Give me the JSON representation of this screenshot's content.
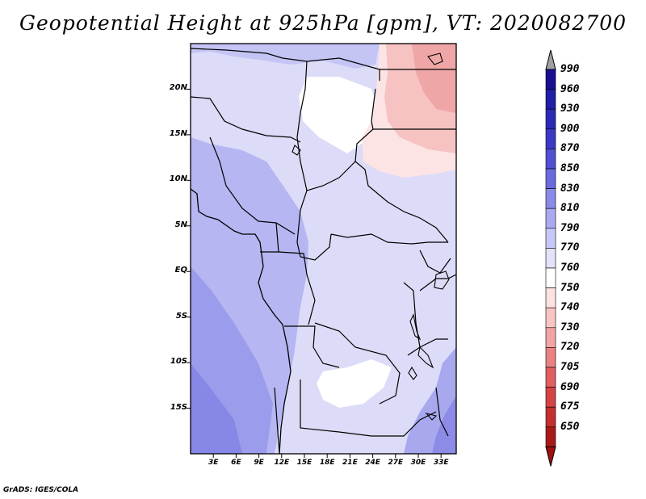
{
  "title": "Geopotential Height at 925hPa [gpm], VT: 2020082700",
  "credit": "GrADS: IGES/COLA",
  "map": {
    "lon_range": [
      0,
      35
    ],
    "lat_range": [
      -20,
      25
    ],
    "lat_ticks": [
      {
        "value": 20,
        "label": "20N"
      },
      {
        "value": 15,
        "label": "15N"
      },
      {
        "value": 10,
        "label": "10N"
      },
      {
        "value": 5,
        "label": "5N"
      },
      {
        "value": 0,
        "label": "EQ"
      },
      {
        "value": -5,
        "label": "5S"
      },
      {
        "value": -10,
        "label": "10S"
      },
      {
        "value": -15,
        "label": "15S"
      }
    ],
    "lon_ticks": [
      {
        "value": 3,
        "label": "3E"
      },
      {
        "value": 6,
        "label": "6E"
      },
      {
        "value": 9,
        "label": "9E"
      },
      {
        "value": 12,
        "label": "12E"
      },
      {
        "value": 15,
        "label": "15E"
      },
      {
        "value": 18,
        "label": "18E"
      },
      {
        "value": 21,
        "label": "21E"
      },
      {
        "value": 24,
        "label": "24E"
      },
      {
        "value": 27,
        "label": "27E"
      },
      {
        "value": 30,
        "label": "30E"
      },
      {
        "value": 33,
        "label": "33E"
      }
    ]
  },
  "colorbar": {
    "levels": [
      {
        "label": "990",
        "color": "#1a0f8f"
      },
      {
        "label": "960",
        "color": "#1e1ea6"
      },
      {
        "label": "930",
        "color": "#2a2ab5"
      },
      {
        "label": "900",
        "color": "#3a3ac4"
      },
      {
        "label": "870",
        "color": "#5050d0"
      },
      {
        "label": "850",
        "color": "#6a6ade"
      },
      {
        "label": "830",
        "color": "#8a8ae8"
      },
      {
        "label": "810",
        "color": "#aaaaf0"
      },
      {
        "label": "790",
        "color": "#c8c8f6"
      },
      {
        "label": "770",
        "color": "#e2e2fb"
      },
      {
        "label": "760",
        "color": "#ffffff"
      },
      {
        "label": "750",
        "color": "#fde2e2"
      },
      {
        "label": "740",
        "color": "#f8c4c4"
      },
      {
        "label": "730",
        "color": "#f2a4a4"
      },
      {
        "label": "720",
        "color": "#ea8282"
      },
      {
        "label": "705",
        "color": "#e06060"
      },
      {
        "label": "690",
        "color": "#d44444"
      },
      {
        "label": "675",
        "color": "#c43030"
      },
      {
        "label": "650",
        "color": "#a81a1a"
      }
    ],
    "top_arrow_color": "#a0a0a0",
    "bottom_arrow_color": "#a01010"
  }
}
